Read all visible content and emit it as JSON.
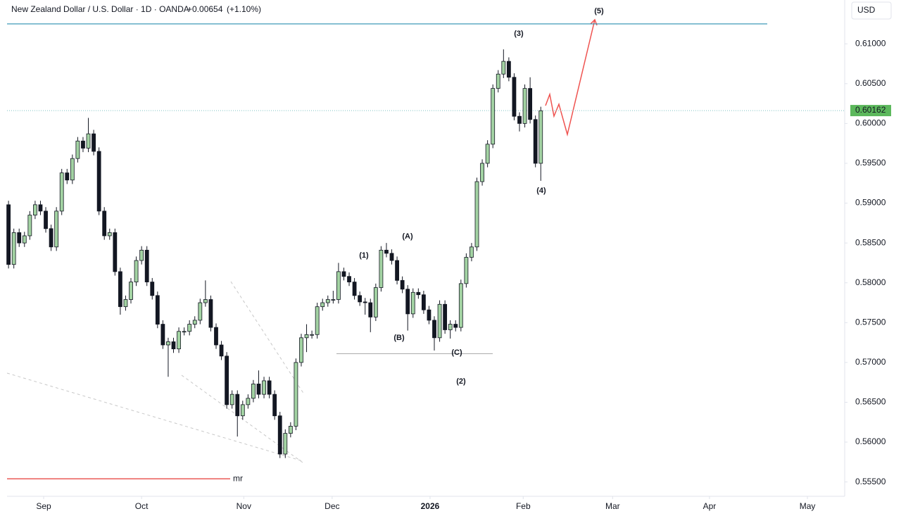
{
  "chart_data": {
    "type": "candlestick",
    "title": "New Zealand Dollar / U.S. Dollar · 1D · OANDA",
    "change": "+0.00654",
    "change_pct": "(+1.10%)",
    "currency": "USD",
    "up_color": "#a3d3a3",
    "down_color": "#131722",
    "last_price": 0.60162,
    "ylim": [
      0.5532,
      0.6155
    ],
    "yticks": [
      {
        "value": 0.555,
        "label": "0.55500"
      },
      {
        "value": 0.56,
        "label": "0.56000"
      },
      {
        "value": 0.565,
        "label": "0.56500"
      },
      {
        "value": 0.57,
        "label": "0.57000"
      },
      {
        "value": 0.575,
        "label": "0.57500"
      },
      {
        "value": 0.58,
        "label": "0.58000"
      },
      {
        "value": 0.585,
        "label": "0.58500"
      },
      {
        "value": 0.59,
        "label": "0.59000"
      },
      {
        "value": 0.595,
        "label": "0.59500"
      },
      {
        "value": 0.6,
        "label": "0.60000"
      },
      {
        "value": 0.605,
        "label": "0.60500"
      },
      {
        "value": 0.61,
        "label": "0.61000"
      }
    ],
    "xlim": [
      -1.6,
      157.1
    ],
    "xticks": [
      {
        "value": 6.6,
        "label": "Sep"
      },
      {
        "value": 25.0,
        "label": "Oct"
      },
      {
        "value": 44.2,
        "label": "Nov"
      },
      {
        "value": 60.8,
        "label": "Dec"
      },
      {
        "value": 79.2,
        "label": "2026"
      },
      {
        "value": 96.7,
        "label": "Feb"
      },
      {
        "value": 113.5,
        "label": "Mar"
      },
      {
        "value": 131.7,
        "label": "Apr"
      },
      {
        "value": 150.1,
        "label": "May"
      }
    ],
    "open": [
      0.5898,
      0.5823,
      0.5863,
      0.585,
      0.5859,
      0.5885,
      0.5898,
      0.589,
      0.5868,
      0.5845,
      0.589,
      0.5938,
      0.5929,
      0.5956,
      0.5978,
      0.5969,
      0.5987,
      0.5965,
      0.589,
      0.5859,
      0.5863,
      0.5814,
      0.577,
      0.5779,
      0.5801,
      0.5828,
      0.5841,
      0.5801,
      0.5784,
      0.5748,
      0.5722,
      0.5726,
      0.5717,
      0.5739,
      0.5739,
      0.5748,
      0.5753,
      0.5775,
      0.5779,
      0.5744,
      0.5722,
      0.5708,
      0.5647,
      0.566,
      0.5633,
      0.5647,
      0.5655,
      0.5673,
      0.566,
      0.5677,
      0.566,
      0.5633,
      0.5585,
      0.5611,
      0.562,
      0.57,
      0.5731,
      0.5735,
      0.5735,
      0.577,
      0.5775,
      0.5779,
      0.5779,
      0.5814,
      0.5808,
      0.5801,
      0.5784,
      0.5776,
      0.5775,
      0.5757,
      0.5794,
      0.5841,
      0.5837,
      0.5828,
      0.5803,
      0.5792,
      0.5761,
      0.5788,
      0.5785,
      0.5766,
      0.5753,
      0.5731,
      0.5773,
      0.5741,
      0.5748,
      0.5744,
      0.5799,
      0.5832,
      0.5845,
      0.5927,
      0.595,
      0.5974,
      0.6044,
      0.6062,
      0.6078,
      0.6058,
      0.6009,
      0.6,
      0.6044,
      0.6005,
      0.595
    ],
    "high": [
      0.5903,
      0.5868,
      0.5868,
      0.5864,
      0.589,
      0.5903,
      0.5903,
      0.5895,
      0.5873,
      0.5895,
      0.5943,
      0.5943,
      0.5961,
      0.5983,
      0.5983,
      0.6007,
      0.5992,
      0.597,
      0.5895,
      0.5868,
      0.5868,
      0.5819,
      0.5784,
      0.5806,
      0.5833,
      0.5846,
      0.5846,
      0.5806,
      0.5789,
      0.5753,
      0.5731,
      0.5731,
      0.5744,
      0.5744,
      0.5753,
      0.5758,
      0.578,
      0.5803,
      0.5784,
      0.5749,
      0.5727,
      0.5713,
      0.5665,
      0.5665,
      0.5652,
      0.566,
      0.5678,
      0.569,
      0.5682,
      0.5682,
      0.5665,
      0.5638,
      0.5616,
      0.5625,
      0.5705,
      0.5736,
      0.5748,
      0.574,
      0.5775,
      0.578,
      0.5784,
      0.579,
      0.5825,
      0.5819,
      0.5813,
      0.5806,
      0.5789,
      0.5781,
      0.578,
      0.5799,
      0.5846,
      0.585,
      0.5842,
      0.5833,
      0.5808,
      0.5797,
      0.5793,
      0.5793,
      0.579,
      0.5771,
      0.5758,
      0.5778,
      0.5778,
      0.5753,
      0.5753,
      0.5804,
      0.5837,
      0.585,
      0.5932,
      0.5955,
      0.5979,
      0.6049,
      0.6067,
      0.6093,
      0.6083,
      0.6063,
      0.6014,
      0.6049,
      0.6058,
      0.601,
      0.6021
    ],
    "low": [
      0.5818,
      0.5818,
      0.5845,
      0.5845,
      0.5854,
      0.588,
      0.5885,
      0.5863,
      0.584,
      0.584,
      0.5885,
      0.5924,
      0.5924,
      0.5951,
      0.5964,
      0.5964,
      0.596,
      0.5885,
      0.5854,
      0.5854,
      0.5809,
      0.576,
      0.5765,
      0.5774,
      0.5796,
      0.5823,
      0.5796,
      0.5779,
      0.5743,
      0.5717,
      0.5682,
      0.5712,
      0.5712,
      0.5734,
      0.5734,
      0.5743,
      0.5748,
      0.577,
      0.5739,
      0.5717,
      0.5703,
      0.5642,
      0.5642,
      0.5607,
      0.5628,
      0.5642,
      0.565,
      0.5655,
      0.5655,
      0.5655,
      0.5628,
      0.558,
      0.558,
      0.5606,
      0.5615,
      0.5695,
      0.5713,
      0.573,
      0.573,
      0.5765,
      0.577,
      0.5774,
      0.5774,
      0.5803,
      0.5796,
      0.5779,
      0.5771,
      0.576,
      0.5738,
      0.5752,
      0.5789,
      0.5832,
      0.5823,
      0.5798,
      0.5787,
      0.574,
      0.5756,
      0.578,
      0.5761,
      0.5748,
      0.5715,
      0.5726,
      0.5736,
      0.573,
      0.5739,
      0.5739,
      0.5794,
      0.5827,
      0.584,
      0.5922,
      0.5945,
      0.5969,
      0.6039,
      0.6057,
      0.6053,
      0.6004,
      0.599,
      0.5995,
      0.6,
      0.5945,
      0.5928
    ],
    "close": [
      0.5823,
      0.5863,
      0.585,
      0.5859,
      0.5885,
      0.5898,
      0.589,
      0.5868,
      0.5845,
      0.589,
      0.5938,
      0.5929,
      0.5956,
      0.5978,
      0.5969,
      0.5987,
      0.5965,
      0.589,
      0.5859,
      0.5863,
      0.5814,
      0.577,
      0.5779,
      0.5801,
      0.5828,
      0.5841,
      0.5801,
      0.5784,
      0.5748,
      0.5722,
      0.5726,
      0.5717,
      0.5739,
      0.5739,
      0.5748,
      0.5753,
      0.5775,
      0.5779,
      0.5744,
      0.5722,
      0.5708,
      0.5647,
      0.566,
      0.5633,
      0.5647,
      0.5655,
      0.5673,
      0.566,
      0.5677,
      0.566,
      0.5633,
      0.5585,
      0.5611,
      0.562,
      0.57,
      0.5731,
      0.5735,
      0.5735,
      0.577,
      0.5775,
      0.5779,
      0.5779,
      0.5814,
      0.5808,
      0.5801,
      0.5784,
      0.5776,
      0.5775,
      0.5757,
      0.5794,
      0.5841,
      0.5837,
      0.5828,
      0.5803,
      0.5792,
      0.5761,
      0.5788,
      0.5785,
      0.5766,
      0.5753,
      0.5731,
      0.5773,
      0.5741,
      0.5748,
      0.5744,
      0.5799,
      0.5832,
      0.5845,
      0.5927,
      0.595,
      0.5974,
      0.6044,
      0.6062,
      0.6078,
      0.6058,
      0.6009,
      0.6,
      0.6044,
      0.6005,
      0.595,
      0.6016
    ],
    "levels": [
      {
        "value": 0.6125,
        "color": "#2a8fb0"
      },
      {
        "value": 0.5554,
        "color": "#e53935",
        "label": "mr"
      },
      {
        "value": 0.5711,
        "color": "#b0b0b0"
      }
    ],
    "annotations": [
      {
        "text": "(1)",
        "color": "#131722"
      },
      {
        "text": "(2)",
        "color": "#131722"
      },
      {
        "text": "(3)",
        "color": "#131722"
      },
      {
        "text": "(4)",
        "color": "#131722"
      },
      {
        "text": "(5)",
        "color": "#131722"
      },
      {
        "text": "(A)",
        "color": "#8b1a6b"
      },
      {
        "text": "(B)",
        "color": "#8b1a6b"
      },
      {
        "text": "(C)",
        "color": "#8b1a6b"
      }
    ]
  }
}
